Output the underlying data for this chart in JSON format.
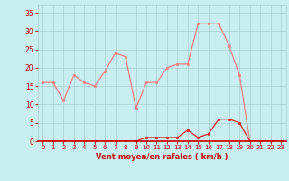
{
  "x": [
    0,
    1,
    2,
    3,
    4,
    5,
    6,
    7,
    8,
    9,
    10,
    11,
    12,
    13,
    14,
    15,
    16,
    17,
    18,
    19,
    20,
    21,
    22,
    23
  ],
  "y_rafales": [
    16,
    16,
    11,
    18,
    16,
    15,
    19,
    24,
    23,
    9,
    16,
    16,
    20,
    21,
    21,
    32,
    32,
    32,
    26,
    18,
    0,
    0,
    0,
    0
  ],
  "y_moyen": [
    0,
    0,
    0,
    0,
    0,
    0,
    0,
    0,
    0,
    0,
    1,
    1,
    1,
    1,
    3,
    1,
    2,
    6,
    6,
    5,
    0,
    0,
    0,
    0
  ],
  "line_color_rafales": "#f08080",
  "line_color_moyen": "#dd2222",
  "bg_color": "#c8eef0",
  "grid_color": "#aacccc",
  "axis_label_color": "#cc0000",
  "tick_color": "#cc0000",
  "xlabel": "Vent moyen/en rafales ( km/h )",
  "ylim": [
    0,
    37
  ],
  "yticks": [
    0,
    5,
    10,
    15,
    20,
    25,
    30,
    35
  ],
  "xlim": [
    -0.5,
    23.5
  ],
  "xticks": [
    0,
    1,
    2,
    3,
    4,
    5,
    6,
    7,
    8,
    9,
    10,
    11,
    12,
    13,
    14,
    15,
    16,
    17,
    18,
    19,
    20,
    21,
    22,
    23
  ]
}
